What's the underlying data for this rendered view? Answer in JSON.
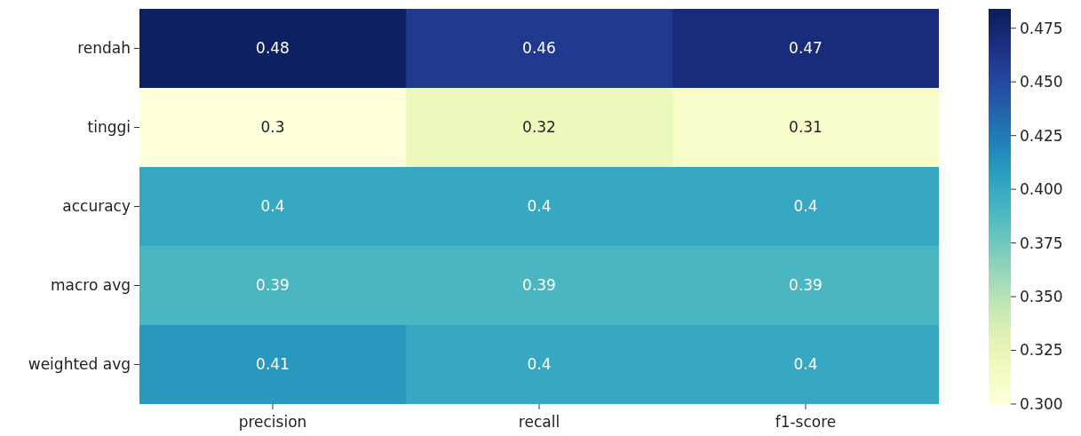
{
  "chart_data": {
    "type": "heatmap",
    "categories": [
      "precision",
      "recall",
      "f1-score"
    ],
    "y_categories": [
      "rendah",
      "tinggi",
      "accuracy",
      "macro avg",
      "weighted avg"
    ],
    "cells": [
      [
        0.48,
        0.46,
        0.47
      ],
      [
        0.3,
        0.32,
        0.31
      ],
      [
        0.4,
        0.4,
        0.4
      ],
      [
        0.39,
        0.39,
        0.39
      ],
      [
        0.41,
        0.4,
        0.4
      ]
    ],
    "data_labels": true,
    "clim": [
      0.3,
      0.484
    ],
    "cticks": [
      {
        "value": 0.3,
        "label": "0.300"
      },
      {
        "value": 0.325,
        "label": "0.325"
      },
      {
        "value": 0.35,
        "label": "0.350"
      },
      {
        "value": 0.375,
        "label": "0.375"
      },
      {
        "value": 0.4,
        "label": "0.400"
      },
      {
        "value": 0.425,
        "label": "0.425"
      },
      {
        "value": 0.45,
        "label": "0.450"
      },
      {
        "value": 0.475,
        "label": "0.475"
      }
    ]
  }
}
